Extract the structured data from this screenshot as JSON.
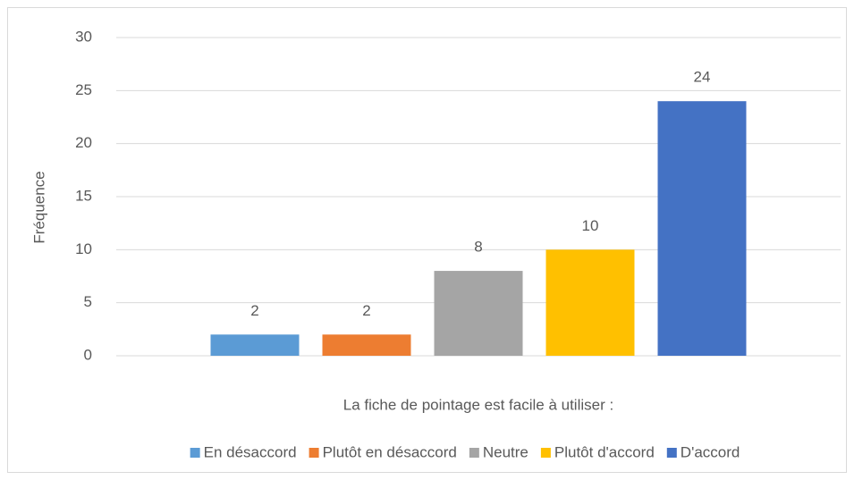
{
  "chart_data": {
    "type": "bar",
    "y_label": "Fréquence",
    "categories": [
      "La fiche de pointage est facile à utiliser :"
    ],
    "series": [
      {
        "name": "En désaccord",
        "color": "#5b9bd5",
        "values": [
          2
        ]
      },
      {
        "name": "Plutôt en désaccord",
        "color": "#ed7d31",
        "values": [
          2
        ]
      },
      {
        "name": "Neutre",
        "color": "#a5a5a5",
        "values": [
          8
        ]
      },
      {
        "name": "Plutôt d'accord",
        "color": "#ffc000",
        "values": [
          10
        ]
      },
      {
        "name": "D'accord",
        "color": "#4472c4",
        "values": [
          24
        ]
      }
    ],
    "ylim": [
      0,
      30
    ],
    "yticks": [
      0,
      5,
      10,
      15,
      20,
      25,
      30
    ],
    "grid": true,
    "legend": "bottom"
  }
}
